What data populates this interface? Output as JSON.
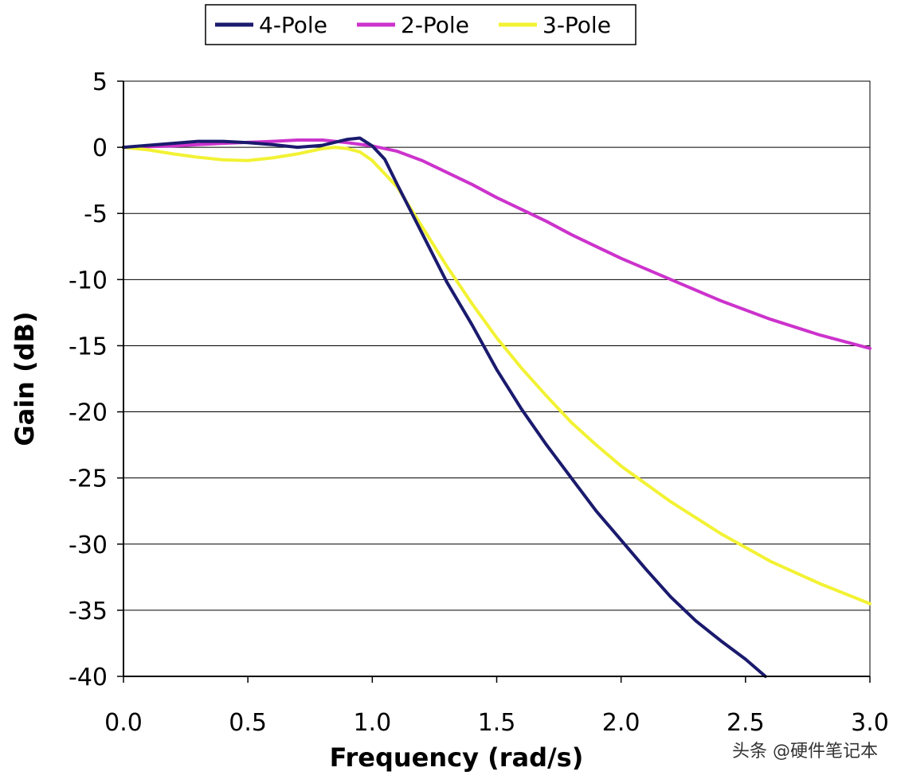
{
  "chart_data": {
    "type": "line",
    "title": "",
    "xlabel": "Frequency (rad/s)",
    "ylabel": "Gain (dB)",
    "xlim": [
      0.0,
      3.0
    ],
    "ylim": [
      -40,
      5
    ],
    "x_ticks": [
      "0.0",
      "0.5",
      "1.0",
      "1.5",
      "2.0",
      "2.5",
      "3.0"
    ],
    "x_tick_values": [
      0.0,
      0.5,
      1.0,
      1.5,
      2.0,
      2.5,
      3.0
    ],
    "y_ticks": [
      "5",
      "0",
      "-5",
      "-10",
      "-15",
      "-20",
      "-25",
      "-30",
      "-35",
      "-40"
    ],
    "y_tick_values": [
      5,
      0,
      -5,
      -10,
      -15,
      -20,
      -25,
      -30,
      -35,
      -40
    ],
    "grid": "horizontal",
    "legend_position": "top",
    "series": [
      {
        "name": "4-Pole",
        "color": "#1a1a6e",
        "points": [
          [
            0.0,
            0.0
          ],
          [
            0.1,
            0.15
          ],
          [
            0.2,
            0.3
          ],
          [
            0.3,
            0.45
          ],
          [
            0.4,
            0.45
          ],
          [
            0.5,
            0.35
          ],
          [
            0.6,
            0.2
          ],
          [
            0.7,
            0.0
          ],
          [
            0.8,
            0.15
          ],
          [
            0.9,
            0.6
          ],
          [
            0.95,
            0.7
          ],
          [
            1.0,
            0.1
          ],
          [
            1.05,
            -0.9
          ],
          [
            1.1,
            -2.8
          ],
          [
            1.2,
            -6.5
          ],
          [
            1.3,
            -10.2
          ],
          [
            1.4,
            -13.4
          ],
          [
            1.5,
            -16.8
          ],
          [
            1.6,
            -19.8
          ],
          [
            1.7,
            -22.5
          ],
          [
            1.8,
            -25.0
          ],
          [
            1.9,
            -27.5
          ],
          [
            2.0,
            -29.7
          ],
          [
            2.1,
            -31.9
          ],
          [
            2.2,
            -34.0
          ],
          [
            2.3,
            -35.8
          ],
          [
            2.4,
            -37.3
          ],
          [
            2.5,
            -38.7
          ],
          [
            2.58,
            -40.0
          ]
        ]
      },
      {
        "name": "2-Pole",
        "color": "#cc33cc",
        "points": [
          [
            0.0,
            0.0
          ],
          [
            0.2,
            0.1
          ],
          [
            0.4,
            0.3
          ],
          [
            0.6,
            0.45
          ],
          [
            0.7,
            0.55
          ],
          [
            0.8,
            0.55
          ],
          [
            0.9,
            0.35
          ],
          [
            1.0,
            0.1
          ],
          [
            1.1,
            -0.3
          ],
          [
            1.2,
            -1.0
          ],
          [
            1.3,
            -1.9
          ],
          [
            1.4,
            -2.8
          ],
          [
            1.5,
            -3.8
          ],
          [
            1.6,
            -4.7
          ],
          [
            1.7,
            -5.6
          ],
          [
            1.8,
            -6.6
          ],
          [
            1.9,
            -7.5
          ],
          [
            2.0,
            -8.4
          ],
          [
            2.2,
            -10.0
          ],
          [
            2.4,
            -11.6
          ],
          [
            2.6,
            -13.0
          ],
          [
            2.8,
            -14.2
          ],
          [
            3.0,
            -15.2
          ]
        ]
      },
      {
        "name": "3-Pole",
        "color": "#f2f234",
        "points": [
          [
            0.0,
            0.0
          ],
          [
            0.1,
            -0.2
          ],
          [
            0.2,
            -0.5
          ],
          [
            0.3,
            -0.75
          ],
          [
            0.4,
            -0.95
          ],
          [
            0.5,
            -1.0
          ],
          [
            0.6,
            -0.8
          ],
          [
            0.7,
            -0.5
          ],
          [
            0.8,
            -0.1
          ],
          [
            0.85,
            0.0
          ],
          [
            0.9,
            -0.1
          ],
          [
            0.95,
            -0.35
          ],
          [
            1.0,
            -1.0
          ],
          [
            1.1,
            -3.0
          ],
          [
            1.2,
            -6.0
          ],
          [
            1.3,
            -9.0
          ],
          [
            1.4,
            -11.8
          ],
          [
            1.5,
            -14.4
          ],
          [
            1.6,
            -16.7
          ],
          [
            1.7,
            -18.8
          ],
          [
            1.8,
            -20.8
          ],
          [
            1.9,
            -22.5
          ],
          [
            2.0,
            -24.1
          ],
          [
            2.2,
            -26.8
          ],
          [
            2.4,
            -29.2
          ],
          [
            2.6,
            -31.3
          ],
          [
            2.8,
            -33.0
          ],
          [
            3.0,
            -34.5
          ]
        ]
      }
    ]
  },
  "watermark": "头条 @硬件笔记本"
}
